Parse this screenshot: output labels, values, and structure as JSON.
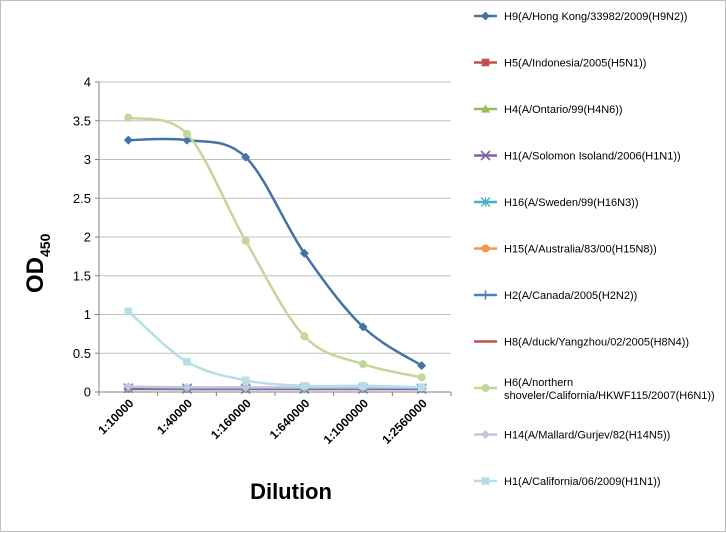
{
  "chart_data": {
    "type": "line",
    "title": "",
    "xlabel": "Dilution",
    "ylabel_main": "OD",
    "ylabel_sub": "450",
    "categories": [
      "1:10000",
      "1:40000",
      "1:160000",
      "1:640000",
      "1:1000000",
      "1:2560000"
    ],
    "ylim": [
      0,
      4
    ],
    "yticks": [
      "0",
      "0.5",
      "1",
      "1.5",
      "2",
      "2.5",
      "3",
      "3.5",
      "4"
    ],
    "grid": true,
    "legend_position": "right",
    "series": [
      {
        "name": "H9(A/Hong Kong/33982/2009(H9N2))",
        "color": "#4572A7",
        "marker": "diamond",
        "values": [
          3.25,
          3.25,
          3.03,
          1.79,
          0.84,
          0.34
        ]
      },
      {
        "name": "H5(A/Indonesia/2005(H5N1))",
        "color": "#C0504D",
        "marker": "square",
        "values": [
          0.04,
          0.04,
          0.04,
          0.04,
          0.04,
          0.04
        ]
      },
      {
        "name": "H4(A/Ontario/99(H4N6))",
        "color": "#9BBB59",
        "marker": "triangle",
        "values": [
          0.04,
          0.04,
          0.04,
          0.04,
          0.04,
          0.04
        ]
      },
      {
        "name": "H1(A/Solomon Isoland/2006(H1N1))",
        "color": "#8064A2",
        "marker": "x",
        "values": [
          0.05,
          0.04,
          0.04,
          0.04,
          0.04,
          0.04
        ]
      },
      {
        "name": "H16(A/Sweden/99(H16N3))",
        "color": "#4BACC6",
        "marker": "star",
        "values": [
          0.05,
          0.05,
          0.05,
          0.05,
          0.05,
          0.05
        ]
      },
      {
        "name": "H15(A/Australia/83/00(H15N8))",
        "color": "#F79646",
        "marker": "circle",
        "values": [
          0.04,
          0.04,
          0.04,
          0.04,
          0.04,
          0.04
        ]
      },
      {
        "name": "H2(A/Canada/2005(H2N2))",
        "color": "#4F81BD",
        "marker": "plus",
        "values": [
          0.05,
          0.05,
          0.05,
          0.05,
          0.05,
          0.05
        ]
      },
      {
        "name": "H8(A/duck/Yangzhou/02/2005(H8N4))",
        "color": "#C0504D",
        "marker": "dash",
        "values": [
          0.04,
          0.04,
          0.04,
          0.04,
          0.04,
          0.04
        ]
      },
      {
        "name": "H6(A/northern shoveler/California/HKWF115/2007(H6N1))",
        "color": "#C3D69B",
        "marker": "circle",
        "values": [
          3.54,
          3.33,
          1.95,
          0.72,
          0.36,
          0.19
        ]
      },
      {
        "name": "H14(A/Mallard/Gurjev/82(H14N5))",
        "color": "#CCC1DA",
        "marker": "diamond",
        "values": [
          0.07,
          0.06,
          0.06,
          0.06,
          0.06,
          0.06
        ]
      },
      {
        "name": "H1(A/California/06/2009(H1N1))",
        "color": "#B7DEE8",
        "marker": "square",
        "values": [
          1.04,
          0.39,
          0.15,
          0.08,
          0.08,
          0.06
        ]
      }
    ]
  }
}
